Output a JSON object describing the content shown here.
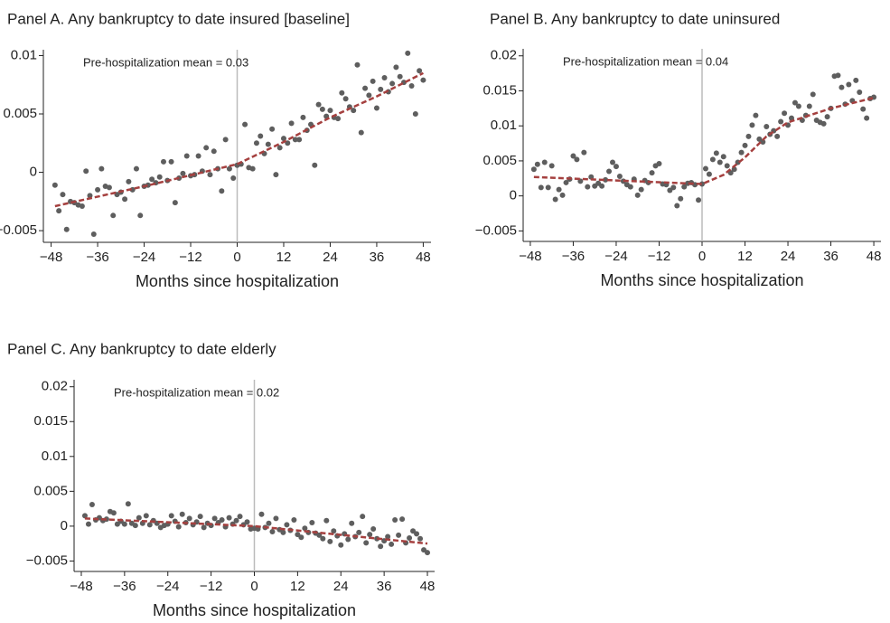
{
  "chart_data": [
    {
      "type": "scatter",
      "title": "Panel A. Any bankruptcy to date insured [baseline]",
      "xlabel": "Months since hospitalization",
      "annotation": "Pre-hospitalization mean = 0.03",
      "xlim": [
        -50,
        50
      ],
      "ylim": [
        -0.006,
        0.0105
      ],
      "vline": 0,
      "xticks": [
        {
          "value": -48,
          "label": "−48"
        },
        {
          "value": -36,
          "label": "−36"
        },
        {
          "value": -24,
          "label": "−24"
        },
        {
          "value": -12,
          "label": "−12"
        },
        0,
        12,
        24,
        36,
        48
      ],
      "yticks": [
        {
          "value": -0.005,
          "label": "−0.005"
        },
        0,
        0.005,
        0.01
      ],
      "series": [
        {
          "color": "#5e5e5e",
          "x": [
            -47,
            -46,
            -45,
            -44,
            -43,
            -42,
            -41,
            -40,
            -39,
            -38,
            -37,
            -36,
            -35,
            -34,
            -33,
            -32,
            -31,
            -30,
            -29,
            -28,
            -27,
            -26,
            -25,
            -24,
            -23,
            -22,
            -21,
            -20,
            -19,
            -18,
            -17,
            -16,
            -15,
            -14,
            -13,
            -12,
            -11,
            -10,
            -9,
            -8,
            -7,
            -6,
            -5,
            -4,
            -3,
            -2,
            -1,
            0,
            1,
            2,
            3,
            4,
            5,
            6,
            7,
            8,
            9,
            10,
            11,
            12,
            13,
            14,
            15,
            16,
            17,
            18,
            19,
            20,
            21,
            22,
            23,
            24,
            25,
            26,
            27,
            28,
            29,
            30,
            31,
            32,
            33,
            34,
            35,
            36,
            37,
            38,
            39,
            40,
            41,
            42,
            43,
            44,
            45,
            46,
            47,
            48
          ],
          "values": [
            -0.0011,
            -0.0033,
            -0.0019,
            -0.0049,
            -0.0025,
            -0.0026,
            -0.0028,
            -0.0029,
            0.0001,
            -0.002,
            -0.0053,
            -0.0015,
            0.0003,
            -0.0012,
            -0.0013,
            -0.0037,
            -0.0019,
            -0.0017,
            -0.0023,
            -0.0008,
            -0.0015,
            0.0003,
            -0.0037,
            -0.0012,
            -0.0011,
            -0.0006,
            -0.0009,
            -0.0004,
            0.0009,
            -0.0007,
            0.0009,
            -0.0026,
            -0.0005,
            -0.0001,
            0.0014,
            -0.0003,
            -0.0002,
            0.0014,
            0.0001,
            0.0021,
            -0.0002,
            0.0018,
            0.0003,
            -0.0016,
            0.0028,
            0.0003,
            -0.0005,
            0.0006,
            0.0007,
            0.0041,
            0.0004,
            0.0003,
            0.0025,
            0.0031,
            0.0016,
            0.0024,
            0.0037,
            -0.0002,
            0.0021,
            0.0029,
            0.0025,
            0.0042,
            0.0028,
            0.0028,
            0.0047,
            0.0036,
            0.0041,
            0.0006,
            0.0058,
            0.0054,
            0.0048,
            0.0053,
            0.0047,
            0.0046,
            0.0068,
            0.0063,
            0.0056,
            0.0053,
            0.0092,
            0.0034,
            0.0072,
            0.0066,
            0.0078,
            0.0055,
            0.0071,
            0.0081,
            0.0069,
            0.0076,
            0.009,
            0.0082,
            0.0077,
            0.0102,
            0.0074,
            0.005,
            0.0087,
            0.0079
          ]
        },
        {
          "color": "#a5403f",
          "style": "dashed",
          "x": [
            -47,
            -24,
            0,
            12,
            24,
            36,
            48
          ],
          "values": [
            -0.0029,
            -0.0012,
            0.0007,
            0.0026,
            0.0047,
            0.0065,
            0.0085
          ]
        }
      ]
    },
    {
      "type": "scatter",
      "title": "Panel B. Any bankruptcy to date uninsured",
      "xlabel": "Months since hospitalization",
      "annotation": "Pre-hospitalization mean = 0.04",
      "xlim": [
        -50,
        50
      ],
      "ylim": [
        -0.0065,
        0.021
      ],
      "vline": 0,
      "xticks": [
        {
          "value": -48,
          "label": "−48"
        },
        {
          "value": -36,
          "label": "−36"
        },
        {
          "value": -24,
          "label": "−24"
        },
        {
          "value": -12,
          "label": "−12"
        },
        0,
        12,
        24,
        36,
        48
      ],
      "yticks": [
        {
          "value": -0.005,
          "label": "−0.005"
        },
        0,
        0.005,
        0.01,
        0.015,
        0.02
      ],
      "series": [
        {
          "color": "#5e5e5e",
          "x": [
            -47,
            -46,
            -45,
            -44,
            -43,
            -42,
            -41,
            -40,
            -39,
            -38,
            -37,
            -36,
            -35,
            -34,
            -33,
            -32,
            -31,
            -30,
            -29,
            -28,
            -27,
            -26,
            -25,
            -24,
            -23,
            -22,
            -21,
            -20,
            -19,
            -18,
            -17,
            -16,
            -15,
            -14,
            -13,
            -12,
            -11,
            -10,
            -9,
            -8,
            -7,
            -6,
            -5,
            -4,
            -3,
            -2,
            -1,
            0,
            1,
            2,
            3,
            4,
            5,
            6,
            7,
            8,
            9,
            10,
            11,
            12,
            13,
            14,
            15,
            16,
            17,
            18,
            19,
            20,
            21,
            22,
            23,
            24,
            25,
            26,
            27,
            28,
            29,
            30,
            31,
            32,
            33,
            34,
            35,
            36,
            37,
            38,
            39,
            40,
            41,
            42,
            43,
            44,
            45,
            46,
            47,
            48
          ],
          "values": [
            0.0038,
            0.0045,
            0.0012,
            0.0048,
            0.0012,
            0.0043,
            -0.0005,
            0.0009,
            0.0001,
            0.0019,
            0.0024,
            0.0057,
            0.0052,
            0.0021,
            0.0062,
            0.0013,
            0.0027,
            0.0014,
            0.0018,
            0.0014,
            0.0023,
            0.0035,
            0.0048,
            0.0042,
            0.0028,
            0.0021,
            0.0016,
            0.0013,
            0.0024,
            0.0001,
            0.0009,
            0.0022,
            0.0019,
            0.0033,
            0.0043,
            0.0046,
            0.0017,
            0.0016,
            0.0008,
            0.0012,
            -0.0014,
            -0.0004,
            0.0013,
            0.0018,
            0.0019,
            0.0016,
            -0.0006,
            0.0017,
            0.0039,
            0.0031,
            0.0052,
            0.0061,
            0.0048,
            0.0056,
            0.0043,
            0.0033,
            0.0038,
            0.0048,
            0.0062,
            0.0072,
            0.0085,
            0.0101,
            0.0115,
            0.0081,
            0.0077,
            0.0099,
            0.0088,
            0.0093,
            0.0085,
            0.0106,
            0.0118,
            0.0101,
            0.0111,
            0.0133,
            0.0128,
            0.0108,
            0.0115,
            0.0128,
            0.0145,
            0.0108,
            0.0105,
            0.0103,
            0.0113,
            0.0125,
            0.0171,
            0.0172,
            0.0155,
            0.0131,
            0.0159,
            0.0136,
            0.0165,
            0.0148,
            0.0124,
            0.0111,
            0.0139,
            0.0141
          ]
        },
        {
          "color": "#a5403f",
          "style": "dashed",
          "x": [
            -47,
            -24,
            0,
            6,
            12,
            18,
            24,
            36,
            48
          ],
          "values": [
            0.0027,
            0.0022,
            0.0017,
            0.003,
            0.0055,
            0.0085,
            0.0105,
            0.0125,
            0.014
          ]
        }
      ]
    },
    {
      "type": "scatter",
      "title": "Panel C. Any bankruptcy to date elderly",
      "xlabel": "Months since hospitalization",
      "annotation": "Pre-hospitalization mean = 0.02",
      "xlim": [
        -50,
        50
      ],
      "ylim": [
        -0.0065,
        0.021
      ],
      "vline": 0,
      "xticks": [
        {
          "value": -48,
          "label": "−48"
        },
        {
          "value": -36,
          "label": "−36"
        },
        {
          "value": -24,
          "label": "−24"
        },
        {
          "value": -12,
          "label": "−12"
        },
        0,
        12,
        24,
        36,
        48
      ],
      "yticks": [
        {
          "value": -0.005,
          "label": "−0.005"
        },
        0,
        0.005,
        0.01,
        0.015,
        0.02
      ],
      "series": [
        {
          "color": "#5e5e5e",
          "x": [
            -47,
            -46,
            -45,
            -44,
            -43,
            -42,
            -41,
            -40,
            -39,
            -38,
            -37,
            -36,
            -35,
            -34,
            -33,
            -32,
            -31,
            -30,
            -29,
            -28,
            -27,
            -26,
            -25,
            -24,
            -23,
            -22,
            -21,
            -20,
            -19,
            -18,
            -17,
            -16,
            -15,
            -14,
            -13,
            -12,
            -11,
            -10,
            -9,
            -8,
            -7,
            -6,
            -5,
            -4,
            -3,
            -2,
            -1,
            0,
            1,
            2,
            3,
            4,
            5,
            6,
            7,
            8,
            9,
            10,
            11,
            12,
            13,
            14,
            15,
            16,
            17,
            18,
            19,
            20,
            21,
            22,
            23,
            24,
            25,
            26,
            27,
            28,
            29,
            30,
            31,
            32,
            33,
            34,
            35,
            36,
            37,
            38,
            39,
            40,
            41,
            42,
            43,
            44,
            45,
            46,
            47,
            48
          ],
          "values": [
            0.0015,
            0.0003,
            0.0031,
            0.0009,
            0.0012,
            0.0008,
            0.001,
            0.0021,
            0.0019,
            0.0003,
            0.0007,
            0.0003,
            0.0032,
            0.0004,
            0.0001,
            0.0012,
            0.0004,
            0.0015,
            0.0002,
            0.0008,
            0.0004,
            -0.0002,
            0.0001,
            0.0003,
            0.0015,
            0.0007,
            -0.0001,
            0.0017,
            0.0005,
            0.0011,
            0.0002,
            0.0006,
            0.0014,
            -0.0002,
            0.0004,
            0.0001,
            0.0011,
            0.0005,
            0.0009,
            -0.0001,
            0.0012,
            0.0003,
            0.0008,
            0.0014,
            0.0002,
            0.0006,
            -0.0004,
            -0.0003,
            -0.0004,
            0.0017,
            -0.0002,
            0.0004,
            -0.0008,
            0.0011,
            -0.0005,
            -0.0009,
            0.0002,
            -0.0006,
            0.0009,
            -0.0012,
            -0.0016,
            -0.0003,
            -0.0009,
            0.0005,
            -0.001,
            -0.0013,
            -0.0018,
            0.0008,
            -0.0022,
            -0.0007,
            -0.0014,
            -0.0027,
            -0.0011,
            -0.0019,
            0.0004,
            -0.0015,
            -0.0009,
            0.0014,
            -0.0024,
            -0.0012,
            -0.0004,
            -0.0018,
            -0.0029,
            -0.0021,
            -0.0015,
            -0.0026,
            0.0009,
            -0.0013,
            0.001,
            -0.0024,
            -0.0017,
            -0.0007,
            -0.0011,
            -0.0018,
            -0.0034,
            -0.0038
          ]
        },
        {
          "color": "#a5403f",
          "style": "dashed",
          "x": [
            -47,
            0,
            48
          ],
          "values": [
            0.0011,
            0,
            -0.0025
          ]
        }
      ]
    }
  ]
}
